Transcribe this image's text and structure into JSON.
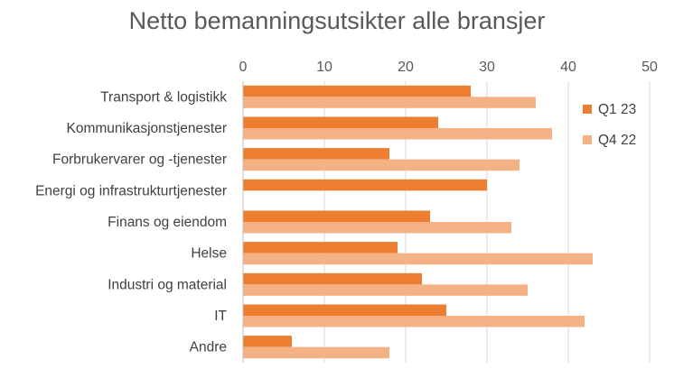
{
  "chart_data": {
    "type": "bar",
    "orientation": "horizontal",
    "title": "Netto bemanningsutsikter alle bransjer",
    "categories": [
      "Transport & logistikk",
      "Kommunikasjonstjenester",
      "Forbrukervarer og -tjenester",
      "Energi og infrastrukturtjenester",
      "Finans og eiendom",
      "Helse",
      "Industri og material",
      "IT",
      "Andre"
    ],
    "series": [
      {
        "name": "Q1 23",
        "color": "#ED7D31",
        "values": [
          28,
          24,
          18,
          30,
          23,
          19,
          22,
          25,
          6
        ]
      },
      {
        "name": "Q4 22",
        "color": "#F4B183",
        "values": [
          36,
          38,
          34,
          null,
          33,
          43,
          35,
          42,
          18
        ]
      }
    ],
    "xlim": [
      0,
      50
    ],
    "xticks": [
      0,
      10,
      20,
      30,
      40,
      50
    ],
    "x_axis_position": "top",
    "grid": true,
    "legend_position": "right"
  }
}
